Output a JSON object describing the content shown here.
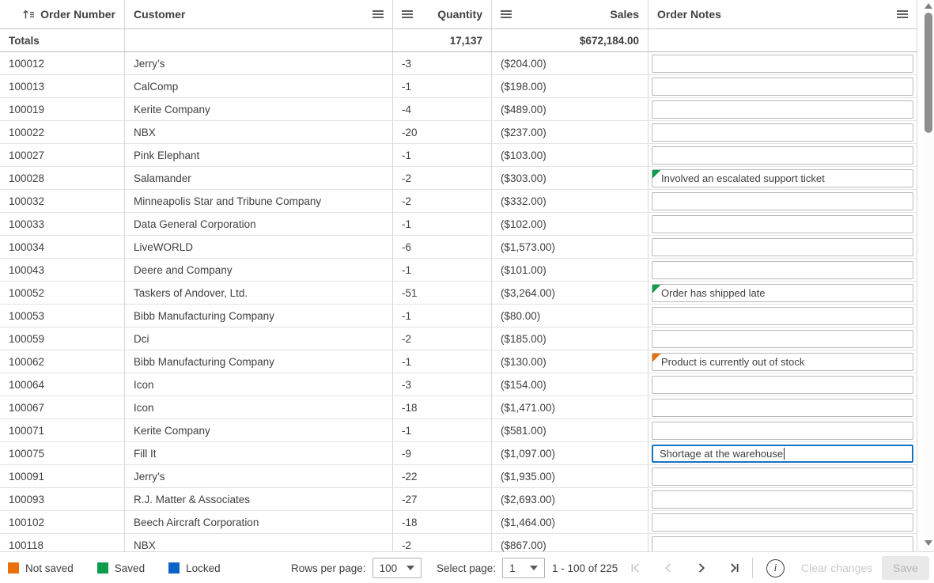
{
  "table": {
    "columns": {
      "order": "Order Number",
      "customer": "Customer",
      "quantity": "Quantity",
      "sales": "Sales",
      "notes": "Order Notes"
    },
    "totals": {
      "label": "Totals",
      "quantity": "17,137",
      "sales": "$672,184.00"
    },
    "rows": [
      {
        "order": "100012",
        "customer": "Jerry’s",
        "quantity": "-3",
        "sales": "($204.00)",
        "note": ""
      },
      {
        "order": "100013",
        "customer": "CalComp",
        "quantity": "-1",
        "sales": "($198.00)",
        "note": ""
      },
      {
        "order": "100019",
        "customer": "Kerite Company",
        "quantity": "-4",
        "sales": "($489.00)",
        "note": ""
      },
      {
        "order": "100022",
        "customer": "NBX",
        "quantity": "-20",
        "sales": "($237.00)",
        "note": ""
      },
      {
        "order": "100027",
        "customer": "Pink Elephant",
        "quantity": "-1",
        "sales": "($103.00)",
        "note": ""
      },
      {
        "order": "100028",
        "customer": "Salamander",
        "quantity": "-2",
        "sales": "($303.00)",
        "note": "Involved an escalated support ticket",
        "flag": "green"
      },
      {
        "order": "100032",
        "customer": "Minneapolis Star and Tribune Company",
        "quantity": "-2",
        "sales": "($332.00)",
        "note": ""
      },
      {
        "order": "100033",
        "customer": "Data General Corporation",
        "quantity": "-1",
        "sales": "($102.00)",
        "note": ""
      },
      {
        "order": "100034",
        "customer": "LiveWORLD",
        "quantity": "-6",
        "sales": "($1,573.00)",
        "note": ""
      },
      {
        "order": "100043",
        "customer": "Deere and Company",
        "quantity": "-1",
        "sales": "($101.00)",
        "note": ""
      },
      {
        "order": "100052",
        "customer": "Taskers of Andover, Ltd.",
        "quantity": "-51",
        "sales": "($3,264.00)",
        "note": "Order has shipped late",
        "flag": "green"
      },
      {
        "order": "100053",
        "customer": "Bibb Manufacturing Company",
        "quantity": "-1",
        "sales": "($80.00)",
        "note": ""
      },
      {
        "order": "100059",
        "customer": "Dci",
        "quantity": "-2",
        "sales": "($185.00)",
        "note": ""
      },
      {
        "order": "100062",
        "customer": "Bibb Manufacturing Company",
        "quantity": "-1",
        "sales": "($130.00)",
        "note": "Product is currently out of stock",
        "flag": "orange"
      },
      {
        "order": "100064",
        "customer": "Icon",
        "quantity": "-3",
        "sales": "($154.00)",
        "note": ""
      },
      {
        "order": "100067",
        "customer": "Icon",
        "quantity": "-18",
        "sales": "($1,471.00)",
        "note": ""
      },
      {
        "order": "100071",
        "customer": "Kerite Company",
        "quantity": "-1",
        "sales": "($581.00)",
        "note": ""
      },
      {
        "order": "100075",
        "customer": "Fill It",
        "quantity": "-9",
        "sales": "($1,097.00)",
        "note": "Shortage at the warehouse",
        "focused": true
      },
      {
        "order": "100091",
        "customer": "Jerry’s",
        "quantity": "-22",
        "sales": "($1,935.00)",
        "note": ""
      },
      {
        "order": "100093",
        "customer": "R.J. Matter & Associates",
        "quantity": "-27",
        "sales": "($2,693.00)",
        "note": ""
      },
      {
        "order": "100102",
        "customer": "Beech Aircraft Corporation",
        "quantity": "-18",
        "sales": "($1,464.00)",
        "note": ""
      },
      {
        "order": "100118",
        "customer": "NBX",
        "quantity": "-2",
        "sales": "($867.00)",
        "note": ""
      }
    ]
  },
  "footer": {
    "legend": [
      {
        "label": "Not saved",
        "color": "#E8700D"
      },
      {
        "label": "Saved",
        "color": "#0E9B4C"
      },
      {
        "label": "Locked",
        "color": "#0C63C8"
      }
    ],
    "rows_per_page_label": "Rows per page:",
    "rows_per_page_value": "100",
    "select_page_label": "Select page:",
    "select_page_value": "1",
    "range_text": "1 - 100 of 225",
    "pagination": [
      {
        "name": "first-page",
        "enabled": false
      },
      {
        "name": "prev-page",
        "enabled": false
      },
      {
        "name": "next-page",
        "enabled": true
      },
      {
        "name": "last-page",
        "enabled": true
      }
    ],
    "info_label": "i",
    "clear_changes_label": "Clear changes",
    "save_label": "Save"
  },
  "colors": {
    "flag_green": "#0F9B4B",
    "flag_orange": "#E86F0C",
    "focus_border": "#1474C4",
    "enabled_icon": "#404040",
    "disabled_icon": "#c9c9c9"
  }
}
